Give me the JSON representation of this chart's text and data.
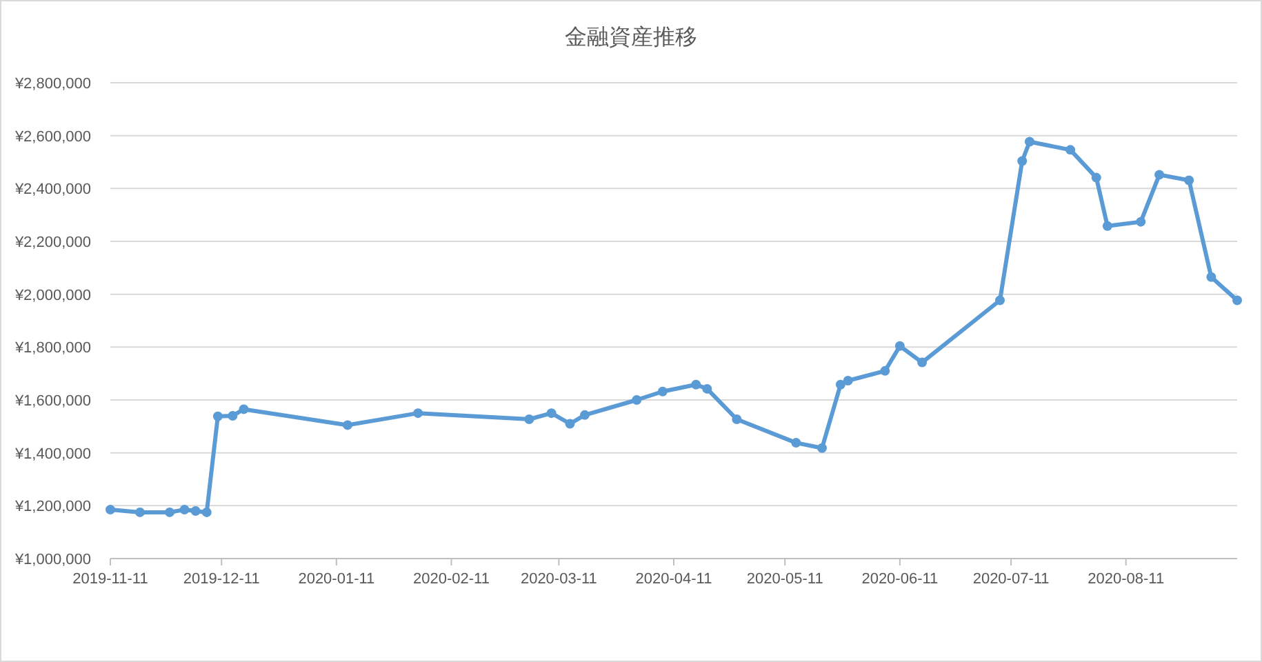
{
  "chart_data": {
    "type": "line",
    "title": "金融資産推移",
    "x": [
      "2019-11-11",
      "2019-11-19",
      "2019-11-27",
      "2019-12-01",
      "2019-12-04",
      "2019-12-07",
      "2019-12-10",
      "2019-12-14",
      "2019-12-17",
      "2020-01-14",
      "2020-02-02",
      "2020-03-03",
      "2020-03-09",
      "2020-03-14",
      "2020-03-18",
      "2020-04-01",
      "2020-04-08",
      "2020-04-17",
      "2020-04-20",
      "2020-04-28",
      "2020-05-14",
      "2020-05-21",
      "2020-05-26",
      "2020-05-28",
      "2020-06-07",
      "2020-06-11",
      "2020-06-17",
      "2020-07-08",
      "2020-07-14",
      "2020-07-16",
      "2020-07-27",
      "2020-08-03",
      "2020-08-06",
      "2020-08-15",
      "2020-08-20",
      "2020-08-28",
      "2020-09-03",
      "2020-09-10"
    ],
    "series": [
      {
        "color": "#5b9bd5",
        "values": [
          1185000,
          1175000,
          1175000,
          1185000,
          1180000,
          1175000,
          1538000,
          1540000,
          1565000,
          1505000,
          1550000,
          1527000,
          1550000,
          1510000,
          1543000,
          1600000,
          1632000,
          1658000,
          1642000,
          1527000,
          1438000,
          1418000,
          1658000,
          1673000,
          1710000,
          1804000,
          1742000,
          1977000,
          2504000,
          2577000,
          2546000,
          2441000,
          2258000,
          2274000,
          2452000,
          2431000,
          2065000,
          1977000
        ]
      }
    ],
    "xlim": [
      "2019-11-11",
      "2020-09-10"
    ],
    "xticks": [
      "2019-11-11",
      "2019-12-11",
      "2020-01-11",
      "2020-02-11",
      "2020-03-11",
      "2020-04-11",
      "2020-05-11",
      "2020-06-11",
      "2020-07-11",
      "2020-08-11"
    ],
    "ylim": [
      1000000,
      2800000
    ],
    "yticks": [
      {
        "value": 1000000,
        "label": "¥1,000,000"
      },
      {
        "value": 1200000,
        "label": "¥1,200,000"
      },
      {
        "value": 1400000,
        "label": "¥1,400,000"
      },
      {
        "value": 1600000,
        "label": "¥1,600,000"
      },
      {
        "value": 1800000,
        "label": "¥1,800,000"
      },
      {
        "value": 2000000,
        "label": "¥2,000,000"
      },
      {
        "value": 2200000,
        "label": "¥2,200,000"
      },
      {
        "value": 2400000,
        "label": "¥2,400,000"
      },
      {
        "value": 2600000,
        "label": "¥2,600,000"
      },
      {
        "value": 2800000,
        "label": "¥2,800,000"
      }
    ],
    "grid": "y",
    "marker": "circle",
    "line_style": "solid"
  }
}
